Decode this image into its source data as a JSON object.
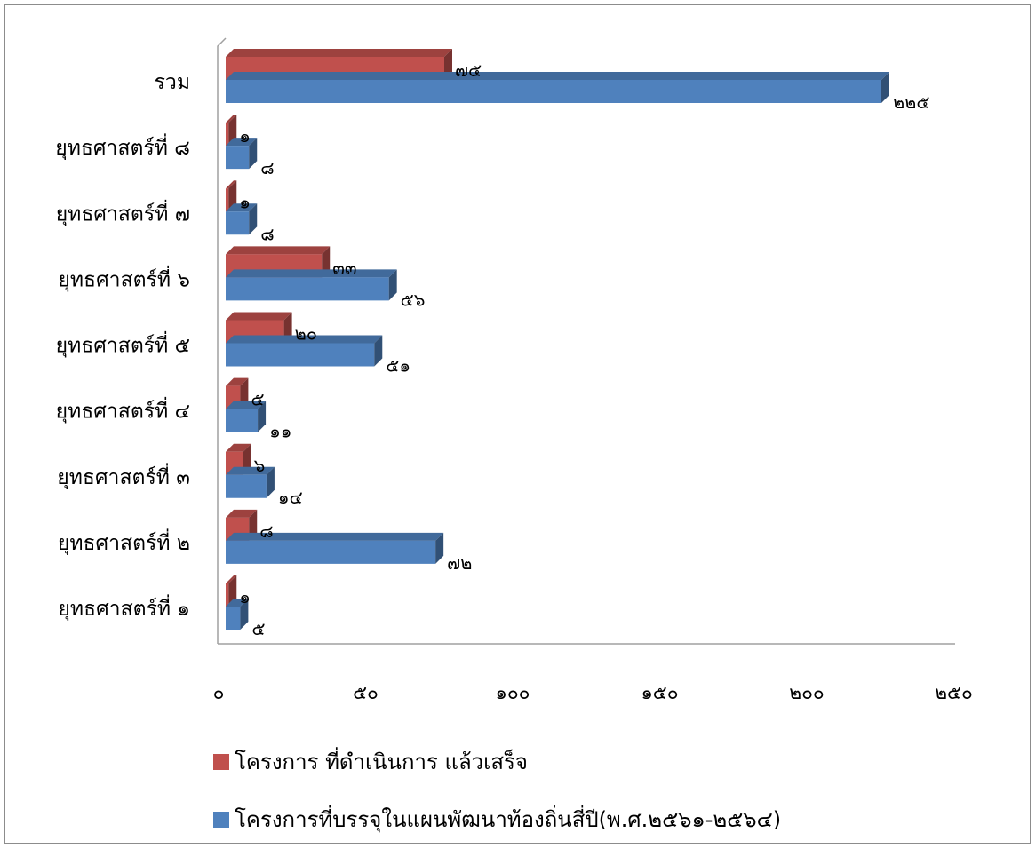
{
  "chart_data": {
    "type": "bar",
    "orientation": "horizontal",
    "style": "3d",
    "categories": [
      "ยุทธศาสตร์ที่ ๑",
      "ยุทธศาสตร์ที่ ๒",
      "ยุทธศาสตร์ที่ ๓",
      "ยุทธศาสตร์ที่ ๔",
      "ยุทธศาสตร์ที่ ๕",
      "ยุทธศาสตร์ที่ ๖",
      "ยุทธศาสตร์ที่ ๗",
      "ยุทธศาสตร์ที่ ๘",
      "รวม"
    ],
    "series": [
      {
        "name": "โครงการ ที่ดำเนินการ แล้วเสร็จ",
        "color": "#c0504d",
        "values": [
          1,
          8,
          6,
          5,
          20,
          33,
          1,
          1,
          75
        ],
        "labels": [
          "๑",
          "๘",
          "๖",
          "๕",
          "๒๐",
          "๓๓",
          "๑",
          "๑",
          "๗๕"
        ]
      },
      {
        "name": "โครงการที่บรรจุในแผนพัฒนาท้องถิ่นสี่ปี(พ.ศ.๒๕๖๑-๒๕๖๔)",
        "color": "#4f81bd",
        "values": [
          5,
          72,
          14,
          11,
          51,
          56,
          8,
          8,
          225
        ],
        "labels": [
          "๕",
          "๗๒",
          "๑๔",
          "๑๑",
          "๕๑",
          "๕๖",
          "๘",
          "๘",
          "๒๒๕"
        ]
      }
    ],
    "xlim": [
      0,
      250
    ],
    "xticks": [
      0,
      50,
      100,
      150,
      200,
      250
    ],
    "xtick_labels": [
      "๐",
      "๕๐",
      "๑๐๐",
      "๑๕๐",
      "๒๐๐",
      "๒๕๐"
    ],
    "grid": false,
    "legend_position": "bottom"
  }
}
